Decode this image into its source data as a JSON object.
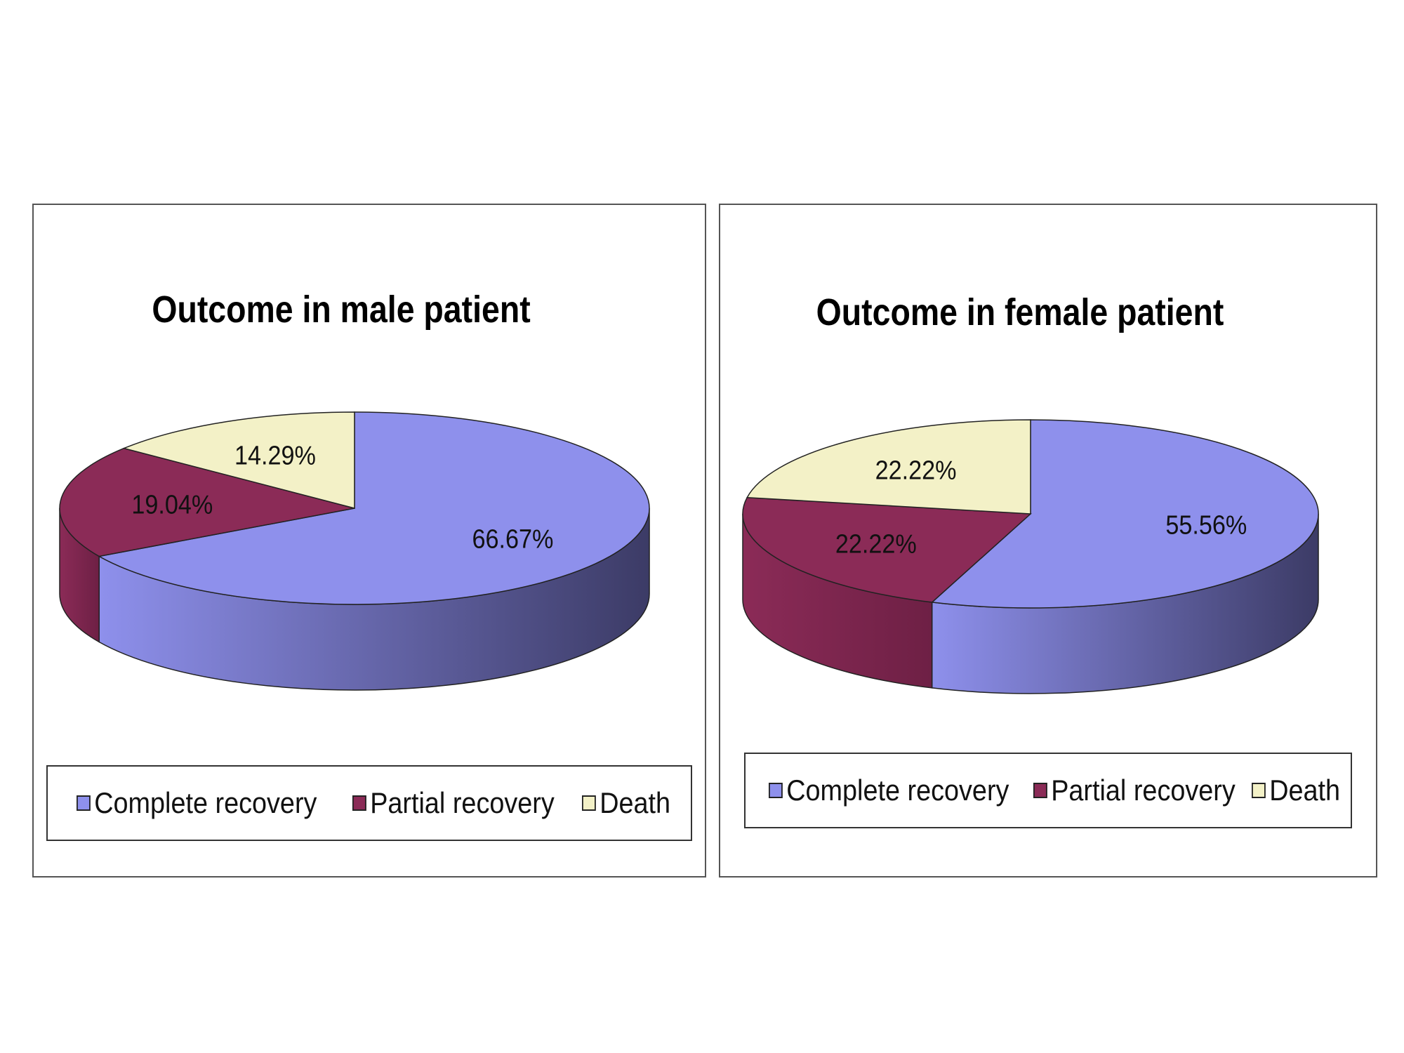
{
  "colors": {
    "complete": "#8e90ec",
    "complete_dark": "#3c3b66",
    "partial": "#8b2b57",
    "partial_dark": "#6e2045",
    "death": "#f3f1c7",
    "death_dark": "#d8d5a8"
  },
  "chart_data": [
    {
      "type": "pie",
      "title": "Outcome in male patient",
      "categories": [
        "Complete recovery",
        "Partial recovery",
        "Death"
      ],
      "values": [
        66.67,
        19.04,
        14.29
      ],
      "labels": [
        "66.67%",
        "19.04%",
        "14.29%"
      ],
      "legend": "bottom"
    },
    {
      "type": "pie",
      "title": "Outcome in female patient",
      "categories": [
        "Complete recovery",
        "Partial recovery",
        "Death"
      ],
      "values": [
        55.56,
        22.22,
        22.22
      ],
      "labels": [
        "55.56%",
        "22.22%",
        "22.22%"
      ],
      "legend": "bottom"
    }
  ]
}
